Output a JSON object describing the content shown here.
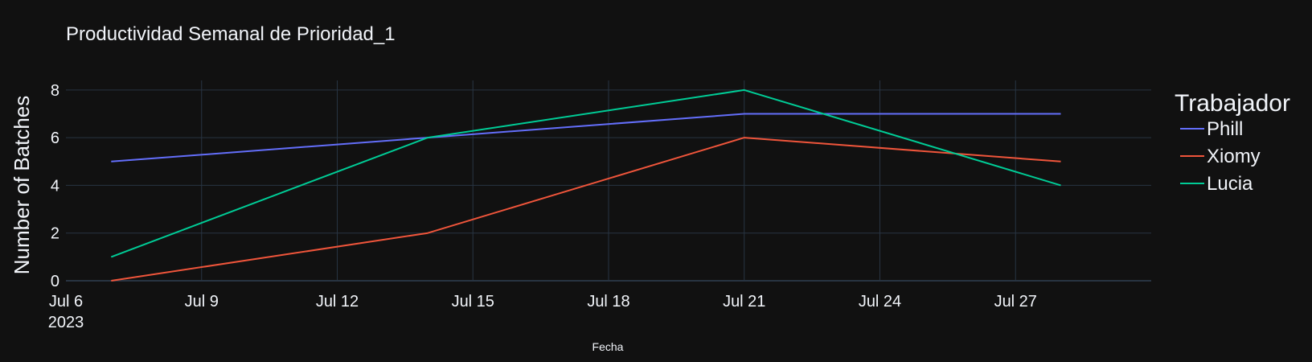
{
  "chart_data": {
    "type": "line",
    "title": "Productividad Semanal de Prioridad_1",
    "xlabel": "Fecha",
    "ylabel": "Number of Batches",
    "x": [
      "2023-07-07",
      "2023-07-14",
      "2023-07-21",
      "2023-07-28"
    ],
    "x_range": [
      "2023-07-06",
      "2023-07-30"
    ],
    "ylim": [
      0,
      8.4
    ],
    "y_ticks": [
      0,
      2,
      4,
      6,
      8
    ],
    "x_ticks": [
      {
        "date": "2023-07-06",
        "label": "Jul 6",
        "sublabel": "2023"
      },
      {
        "date": "2023-07-09",
        "label": "Jul 9"
      },
      {
        "date": "2023-07-12",
        "label": "Jul 12"
      },
      {
        "date": "2023-07-15",
        "label": "Jul 15"
      },
      {
        "date": "2023-07-18",
        "label": "Jul 18"
      },
      {
        "date": "2023-07-21",
        "label": "Jul 21"
      },
      {
        "date": "2023-07-24",
        "label": "Jul 24"
      },
      {
        "date": "2023-07-27",
        "label": "Jul 27"
      }
    ],
    "legend_title": "Trabajador",
    "legend_position": "right",
    "grid": true,
    "series": [
      {
        "name": "Phill",
        "color": "#636efa",
        "values": [
          5,
          6,
          7,
          7
        ]
      },
      {
        "name": "Xiomy",
        "color": "#ef553b",
        "values": [
          0,
          2,
          6,
          5
        ]
      },
      {
        "name": "Lucia",
        "color": "#00cc96",
        "values": [
          1,
          6,
          8,
          4
        ]
      }
    ],
    "colors": {
      "background": "#111111",
      "grid": "#283442",
      "zeroline": "#283442"
    }
  }
}
